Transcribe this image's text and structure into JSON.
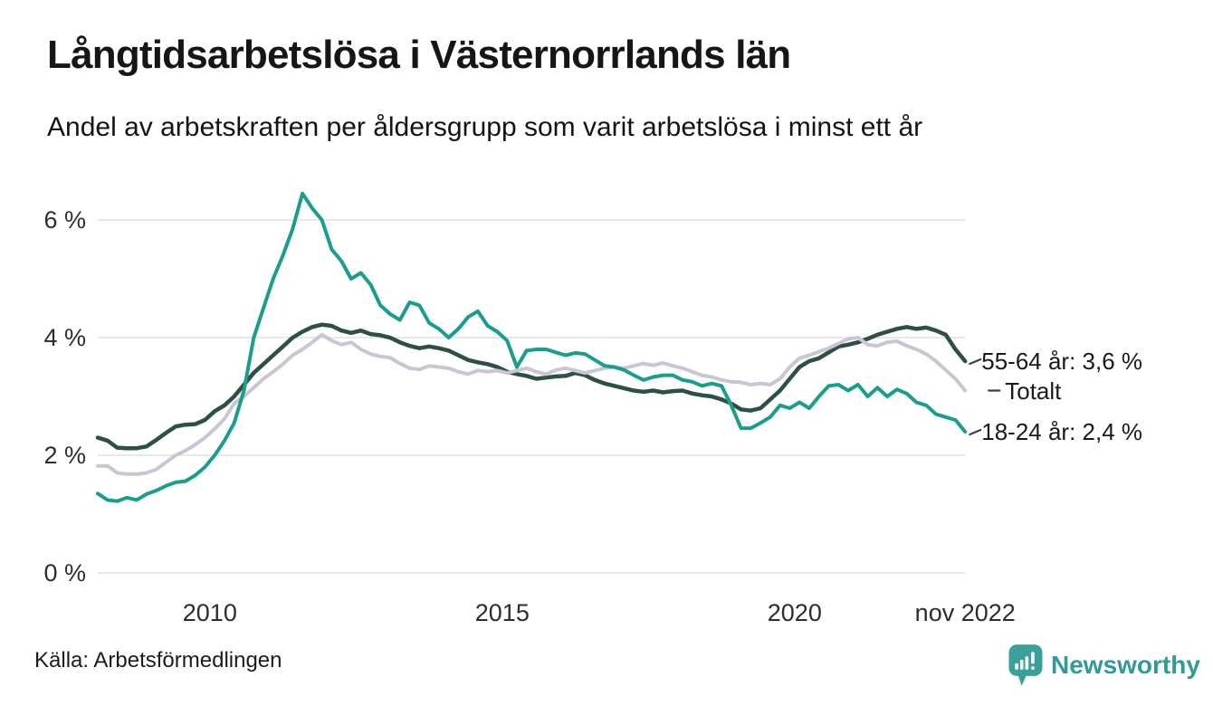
{
  "title": "Långtidsarbetslösa i Västernorrlands län",
  "subtitle": "Andel av arbetskraften per åldersgrupp som varit arbetslösa i minst ett år",
  "source": "Källa: Arbetsförmedlingen",
  "branding": {
    "name": "Newsworthy",
    "color": "#2f9b94",
    "icon": "speech-bubble-bar-chart"
  },
  "chart_data": {
    "type": "line",
    "title": "Långtidsarbetslösa i Västernorrlands län",
    "subtitle": "Andel av arbetskraften per åldersgrupp som varit arbetslösa i minst ett år",
    "unit": "percent of labour force",
    "x_start": 2008.0833,
    "x_step_years": 0.166667,
    "x_end": 2022.9167,
    "ylim": [
      0,
      6.6
    ],
    "grid": "horizontal",
    "legend_position": "right-of-line-ends",
    "background": "#ffffff",
    "gridline_color": "#e8e7ea",
    "y_ticks": [
      {
        "value": 0,
        "label": "0 %"
      },
      {
        "value": 2,
        "label": "2 %"
      },
      {
        "value": 4,
        "label": "4 %"
      },
      {
        "value": 6,
        "label": "6 %"
      }
    ],
    "x_ticks": [
      {
        "value": 2010,
        "label": "2010"
      },
      {
        "value": 2015,
        "label": "2015"
      },
      {
        "value": 2020,
        "label": "2020"
      },
      {
        "value": 2022.9167,
        "label": "nov 2022"
      }
    ],
    "series": [
      {
        "name": "55-64 år",
        "label": "55-64 år: 3,6 %",
        "end_value": 3.6,
        "color": "#2d5046",
        "values": [
          2.3,
          2.25,
          2.13,
          2.12,
          2.12,
          2.15,
          2.26,
          2.38,
          2.49,
          2.52,
          2.53,
          2.6,
          2.75,
          2.85,
          3.0,
          3.2,
          3.4,
          3.55,
          3.7,
          3.85,
          4.0,
          4.1,
          4.18,
          4.22,
          4.2,
          4.12,
          4.08,
          4.12,
          4.06,
          4.04,
          4.0,
          3.92,
          3.86,
          3.82,
          3.85,
          3.82,
          3.78,
          3.7,
          3.62,
          3.58,
          3.55,
          3.5,
          3.42,
          3.38,
          3.35,
          3.3,
          3.32,
          3.34,
          3.35,
          3.4,
          3.36,
          3.28,
          3.22,
          3.18,
          3.14,
          3.1,
          3.08,
          3.1,
          3.07,
          3.09,
          3.1,
          3.05,
          3.02,
          3.0,
          2.95,
          2.88,
          2.78,
          2.76,
          2.8,
          2.95,
          3.1,
          3.3,
          3.5,
          3.6,
          3.65,
          3.75,
          3.85,
          3.88,
          3.92,
          3.98,
          4.05,
          4.1,
          4.15,
          4.18,
          4.15,
          4.17,
          4.12,
          4.05,
          3.8,
          3.6
        ]
      },
      {
        "name": "Totalt",
        "label": "Totalt",
        "end_value": 3.1,
        "color": "#c8c6d4",
        "values": [
          1.82,
          1.82,
          1.7,
          1.68,
          1.68,
          1.7,
          1.76,
          1.88,
          2.0,
          2.08,
          2.18,
          2.3,
          2.45,
          2.62,
          2.88,
          3.0,
          3.15,
          3.3,
          3.42,
          3.55,
          3.7,
          3.8,
          3.92,
          4.05,
          3.95,
          3.88,
          3.92,
          3.8,
          3.72,
          3.68,
          3.66,
          3.56,
          3.48,
          3.46,
          3.52,
          3.5,
          3.48,
          3.42,
          3.38,
          3.44,
          3.42,
          3.44,
          3.4,
          3.44,
          3.48,
          3.42,
          3.38,
          3.45,
          3.48,
          3.44,
          3.4,
          3.44,
          3.48,
          3.5,
          3.48,
          3.52,
          3.56,
          3.53,
          3.57,
          3.52,
          3.48,
          3.42,
          3.36,
          3.33,
          3.28,
          3.25,
          3.24,
          3.2,
          3.22,
          3.2,
          3.3,
          3.5,
          3.65,
          3.7,
          3.76,
          3.82,
          3.9,
          3.98,
          4.0,
          3.88,
          3.86,
          3.92,
          3.94,
          3.86,
          3.8,
          3.72,
          3.6,
          3.45,
          3.3,
          3.1
        ]
      },
      {
        "name": "18-24 år",
        "label": "18-24 år: 2,4 %",
        "end_value": 2.4,
        "color": "#1a9e8c",
        "values": [
          1.35,
          1.24,
          1.22,
          1.28,
          1.24,
          1.34,
          1.4,
          1.48,
          1.54,
          1.56,
          1.66,
          1.8,
          2.0,
          2.25,
          2.55,
          3.1,
          4.0,
          4.5,
          5.0,
          5.4,
          5.85,
          6.45,
          6.2,
          6.0,
          5.5,
          5.3,
          5.0,
          5.1,
          4.9,
          4.55,
          4.4,
          4.3,
          4.6,
          4.55,
          4.25,
          4.15,
          4.0,
          4.15,
          4.35,
          4.45,
          4.2,
          4.1,
          3.95,
          3.5,
          3.78,
          3.8,
          3.8,
          3.75,
          3.7,
          3.74,
          3.72,
          3.62,
          3.52,
          3.5,
          3.45,
          3.36,
          3.28,
          3.33,
          3.36,
          3.36,
          3.28,
          3.25,
          3.18,
          3.22,
          3.18,
          2.85,
          2.46,
          2.46,
          2.55,
          2.65,
          2.85,
          2.8,
          2.9,
          2.8,
          3.0,
          3.18,
          3.2,
          3.1,
          3.2,
          3.0,
          3.15,
          3.0,
          3.12,
          3.05,
          2.9,
          2.85,
          2.7,
          2.65,
          2.6,
          2.4
        ]
      }
    ]
  }
}
